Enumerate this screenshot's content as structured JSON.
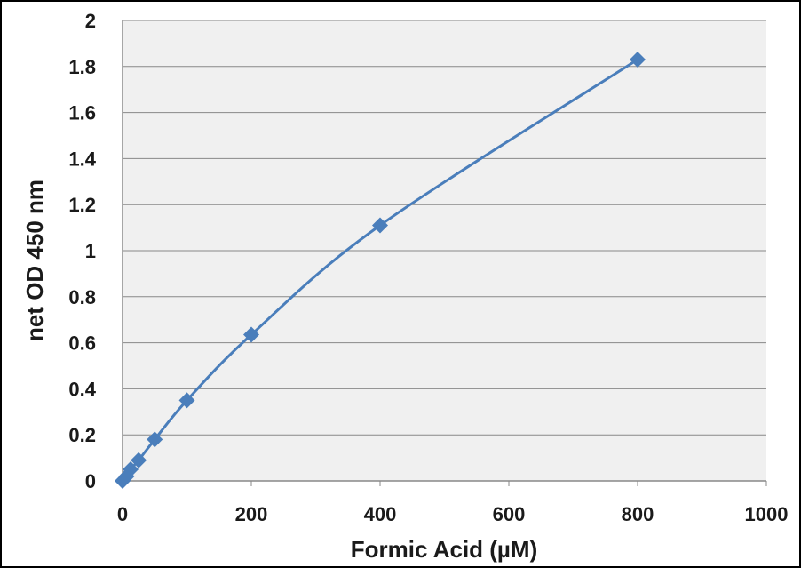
{
  "chart_data": {
    "type": "scatter",
    "title": "",
    "xlabel": "Formic Acid (µM)",
    "ylabel": "net OD 450 nm",
    "xlim": [
      0,
      1000
    ],
    "ylim": [
      0,
      2
    ],
    "x_ticks": [
      0,
      200,
      400,
      600,
      800,
      1000
    ],
    "y_ticks": [
      0,
      0.2,
      0.4,
      0.6,
      0.8,
      1,
      1.2,
      1.4,
      1.6,
      1.8,
      2
    ],
    "x_tick_labels": [
      "0",
      "200",
      "400",
      "600",
      "800",
      "1000"
    ],
    "y_tick_labels": [
      "0",
      "0.2",
      "0.4",
      "0.6",
      "0.8",
      "1",
      "1.2",
      "1.4",
      "1.6",
      "1.8",
      "2"
    ],
    "grid": "horizontal",
    "legend": "none",
    "line": "smooth",
    "marker": "diamond",
    "series": [
      {
        "x": [
          0,
          6.25,
          12.5,
          25,
          50,
          100,
          200,
          400,
          800
        ],
        "y": [
          0,
          0.02,
          0.05,
          0.09,
          0.18,
          0.35,
          0.635,
          1.11,
          1.83
        ]
      }
    ],
    "colors": {
      "series": "#4a7ebb",
      "plot_background": "#f0f0f0",
      "grid": "#888888",
      "frame": "#000000"
    }
  }
}
